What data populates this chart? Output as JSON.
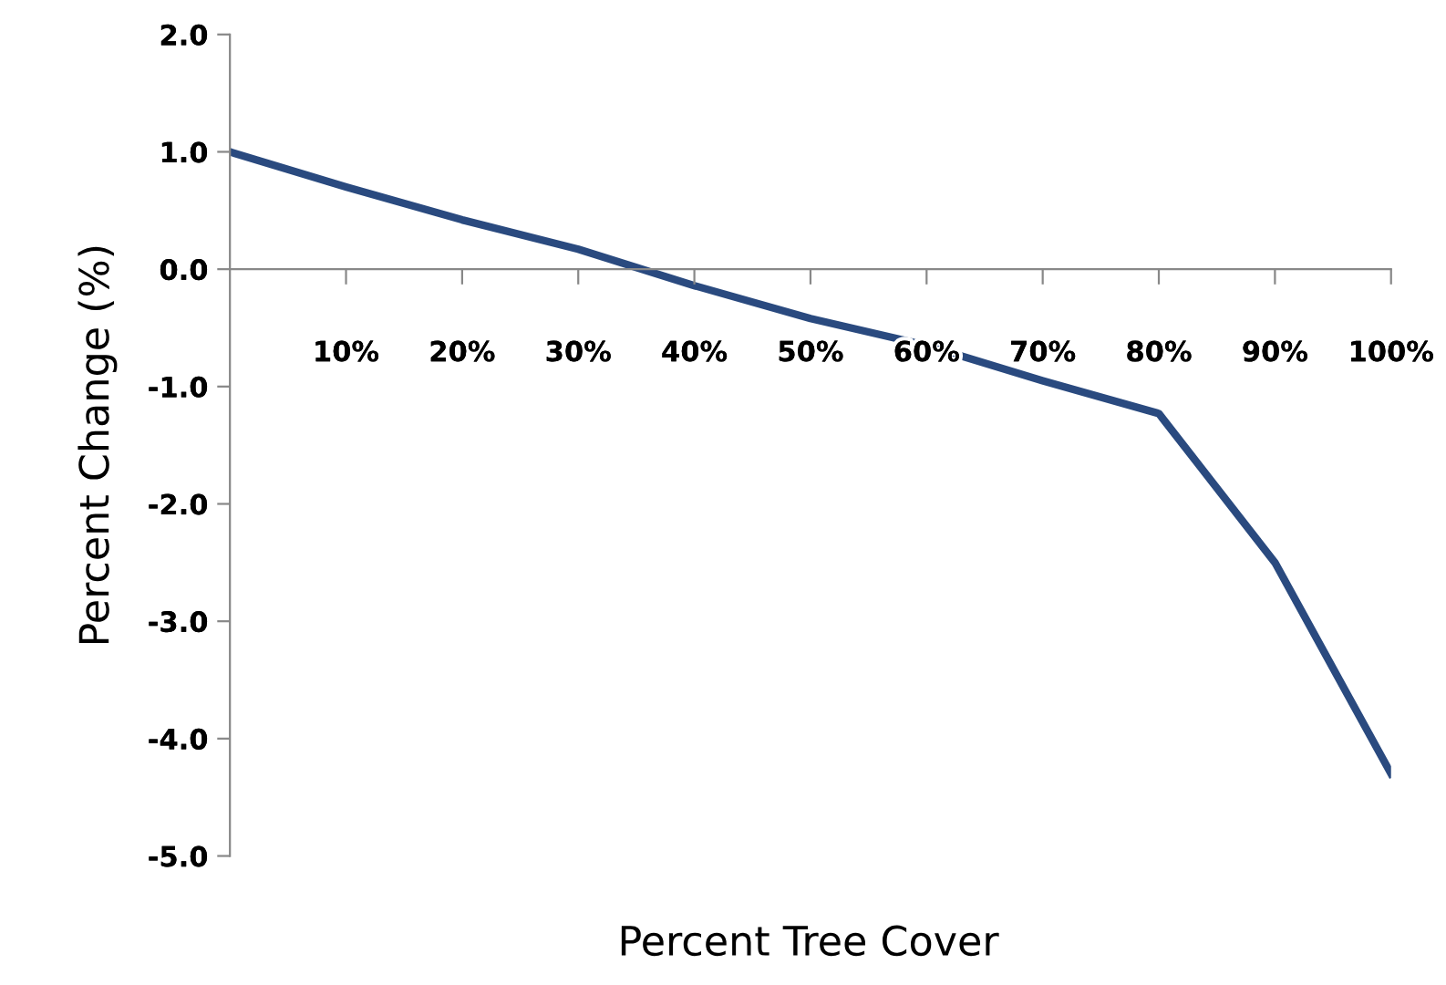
{
  "chart_data": {
    "type": "line",
    "xlabel": "Percent Tree Cover",
    "ylabel": "Percent Change (%)",
    "x": [
      0,
      10,
      20,
      30,
      40,
      50,
      60,
      70,
      80,
      90,
      100
    ],
    "series": [
      {
        "color": "#2a4a7f",
        "values": [
          1.0,
          0.7,
          0.42,
          0.17,
          -0.14,
          -0.42,
          -0.65,
          -0.95,
          -1.23,
          -2.5,
          -4.3
        ]
      }
    ],
    "xlim": [
      0,
      100
    ],
    "xticks": [
      {
        "value": 10,
        "label": "10%"
      },
      {
        "value": 20,
        "label": "20%"
      },
      {
        "value": 30,
        "label": "30%"
      },
      {
        "value": 40,
        "label": "40%"
      },
      {
        "value": 50,
        "label": "50%"
      },
      {
        "value": 60,
        "label": "60%"
      },
      {
        "value": 70,
        "label": "70%"
      },
      {
        "value": 80,
        "label": "80%"
      },
      {
        "value": 90,
        "label": "90%"
      },
      {
        "value": 100,
        "label": "100%"
      }
    ],
    "ylim": [
      -5.0,
      2.0
    ],
    "yticks": [
      {
        "value": 2.0,
        "label": "2.0"
      },
      {
        "value": 1.0,
        "label": "1.0"
      },
      {
        "value": 0.0,
        "label": "0.0"
      },
      {
        "value": -1.0,
        "label": "-1.0"
      },
      {
        "value": -2.0,
        "label": "-2.0"
      },
      {
        "value": -3.0,
        "label": "-3.0"
      },
      {
        "value": -4.0,
        "label": "-4.0"
      },
      {
        "value": -5.0,
        "label": "-5.0"
      }
    ],
    "grid": false,
    "marker": "none",
    "line_style": "solid"
  }
}
